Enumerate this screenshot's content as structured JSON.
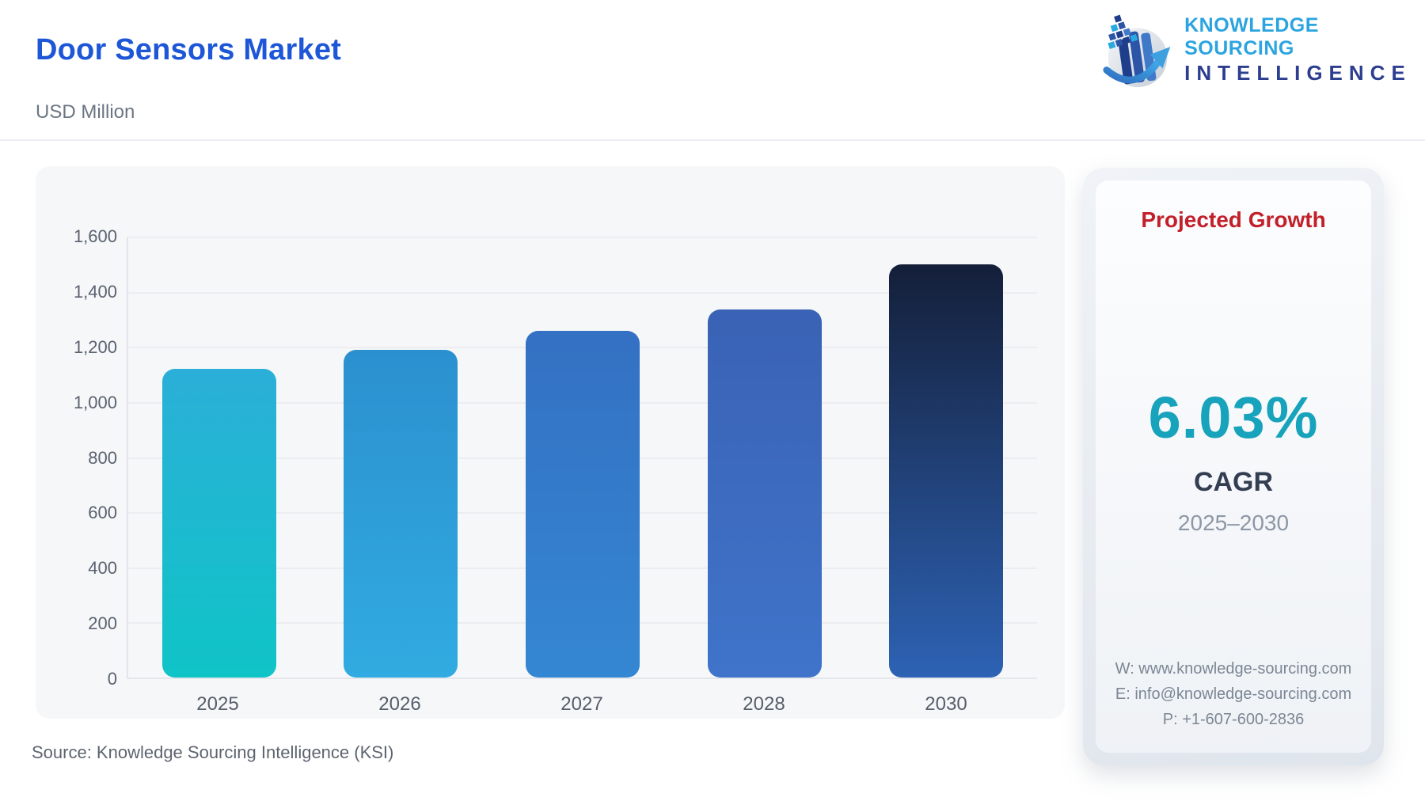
{
  "header": {
    "title": "Door Sensors Market",
    "subtitle": "USD Million",
    "logo": {
      "line1": "KNOWLEDGE SOURCING",
      "line2": "INTELLIGENCE"
    }
  },
  "chart_data": {
    "type": "bar",
    "title": "Door Sensors Market",
    "unit": "USD Million",
    "categories": [
      "2025",
      "2026",
      "2027",
      "2028",
      "2030"
    ],
    "values": [
      1120,
      1188,
      1259,
      1335,
      1500
    ],
    "ylim": [
      0,
      1600
    ],
    "ytick_interval": 200,
    "yticks": [
      "1,600",
      "1,400",
      "1,200",
      "1,000",
      "800",
      "600",
      "400",
      "200",
      "0"
    ],
    "xlabel": "",
    "ylabel": "USD Million",
    "grid": true,
    "legend": "none",
    "bar_colors": [
      {
        "top": "#2bafd8",
        "bottom": "#0fc4c7"
      },
      {
        "top": "#2b90cf",
        "bottom": "#31abe1"
      },
      {
        "top": "#3470c3",
        "bottom": "#3487d3"
      },
      {
        "top": "#3a62b5",
        "bottom": "#3f74ca"
      },
      {
        "top": "#141f39",
        "bottom": "#2d62b4"
      }
    ]
  },
  "growth_panel": {
    "title": "Projected Growth",
    "value": "6.03%",
    "label": "CAGR",
    "period": "2025–2030",
    "contact": {
      "website": "W: www.knowledge-sourcing.com",
      "email": "E: info@knowledge-sourcing.com",
      "phone": "P: +1-607-600-2836"
    }
  },
  "footer": {
    "source": "Source: Knowledge Sourcing Intelligence (KSI)"
  },
  "colors": {
    "title_blue": "#1e56d8",
    "panel_red": "#c2202a",
    "cagr_teal": "#17a3bb",
    "logo_light_blue": "#2ba4e0",
    "logo_dark_blue": "#2c3e8f",
    "card_background": "#f6f7f9"
  }
}
